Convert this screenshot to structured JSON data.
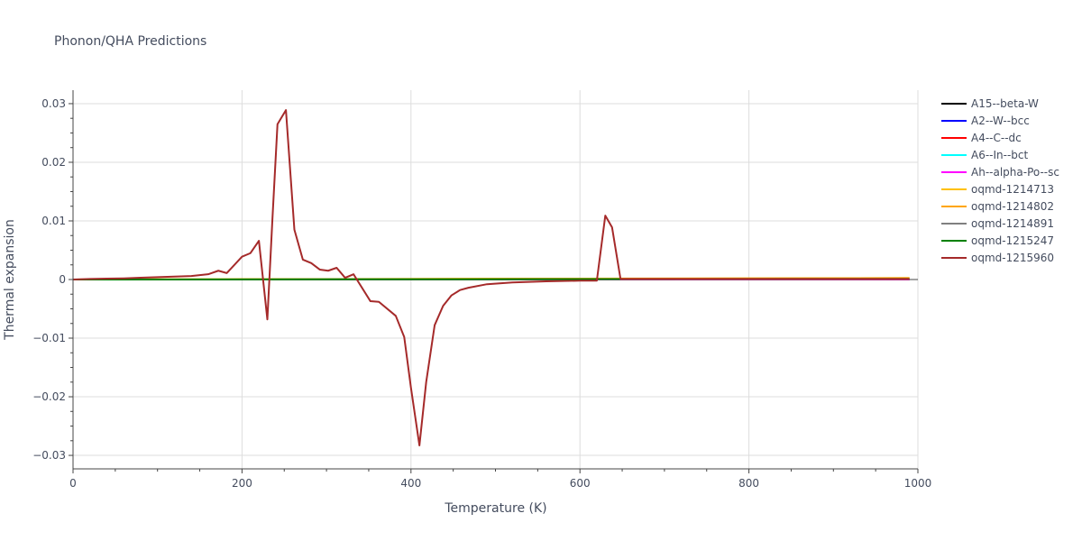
{
  "chart_data": {
    "type": "line",
    "title": "Phonon/QHA Predictions",
    "xlabel": "Temperature (K)",
    "ylabel": "Thermal expansion",
    "xlim": [
      0,
      1000
    ],
    "ylim": [
      -0.0323,
      0.0323
    ],
    "x_ticks": [
      0,
      200,
      400,
      600,
      800,
      1000
    ],
    "y_ticks": [
      -0.03,
      -0.02,
      -0.01,
      0,
      0.01,
      0.02,
      0.03
    ],
    "x_tick_labels": [
      "0",
      "200",
      "400",
      "600",
      "800",
      "1000"
    ],
    "y_tick_labels": [
      "−0.03",
      "−0.02",
      "−0.01",
      "0",
      "0.01",
      "0.02",
      "0.03"
    ],
    "grid": true,
    "legend_position": "right",
    "series": [
      {
        "name": "A15--beta-W",
        "color": "#000000",
        "x": [
          0,
          990
        ],
        "y": [
          0,
          0
        ]
      },
      {
        "name": "A2--W--bcc",
        "color": "#0000ff",
        "x": [
          0,
          990
        ],
        "y": [
          0,
          0
        ]
      },
      {
        "name": "A4--C--dc",
        "color": "#ff0000",
        "x": [
          0,
          990
        ],
        "y": [
          0,
          0
        ]
      },
      {
        "name": "A6--In--bct",
        "color": "#00ffff",
        "x": [
          0,
          990
        ],
        "y": [
          0,
          0
        ]
      },
      {
        "name": "Ah--alpha-Po--sc",
        "color": "#ff00ff",
        "x": [
          0,
          990
        ],
        "y": [
          0,
          0
        ]
      },
      {
        "name": "oqmd-1214713",
        "color": "#ffc000",
        "x": [
          0,
          200,
          400,
          600,
          800,
          990
        ],
        "y": [
          0,
          5e-05,
          0.0001,
          0.00015,
          0.0002,
          0.00025
        ]
      },
      {
        "name": "oqmd-1214802",
        "color": "#ffa500",
        "x": [
          0,
          200,
          400,
          600,
          800,
          990
        ],
        "y": [
          0,
          5e-05,
          0.0001,
          0.00015,
          0.0002,
          0.00025
        ]
      },
      {
        "name": "oqmd-1214891",
        "color": "#808080",
        "x": [
          0,
          990
        ],
        "y": [
          0,
          5e-05
        ]
      },
      {
        "name": "oqmd-1215247",
        "color": "#008000",
        "x": [
          0,
          990
        ],
        "y": [
          0,
          0.0001
        ]
      },
      {
        "name": "oqmd-1215960",
        "color": "#a52a2a",
        "x": [
          0,
          20,
          40,
          60,
          80,
          100,
          120,
          140,
          160,
          172,
          182,
          200,
          210,
          220,
          230,
          236,
          242,
          252,
          262,
          272,
          282,
          292,
          302,
          312,
          322,
          332,
          352,
          362,
          382,
          392,
          400,
          410,
          418,
          428,
          438,
          448,
          458,
          468,
          490,
          520,
          560,
          600,
          620,
          630,
          638,
          648,
          660,
          700,
          800,
          990
        ],
        "y": [
          0,
          0.0001,
          0.00015,
          0.0002,
          0.0003,
          0.0004,
          0.0005,
          0.0006,
          0.0009,
          0.0015,
          0.0011,
          0.0039,
          0.0045,
          0.0066,
          -0.0068,
          0.0103,
          0.0265,
          0.0289,
          0.0085,
          0.0034,
          0.0028,
          0.0017,
          0.0015,
          0.002,
          0.0003,
          0.0009,
          -0.0037,
          -0.0038,
          -0.0062,
          -0.0098,
          -0.0185,
          -0.0283,
          -0.0175,
          -0.0078,
          -0.0045,
          -0.0027,
          -0.0018,
          -0.0014,
          -0.0008,
          -0.0005,
          -0.0003,
          -0.0002,
          -0.0002,
          0.0109,
          0.0089,
          0.0001,
          0.0001,
          0.0001,
          0.0001,
          0.0001
        ]
      }
    ]
  }
}
